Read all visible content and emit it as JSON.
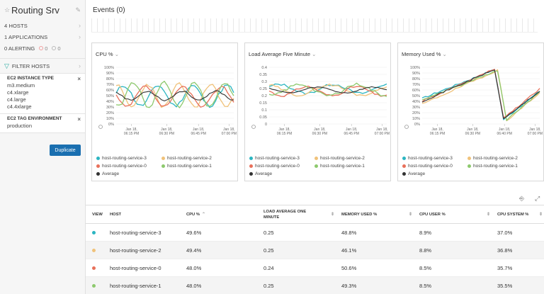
{
  "sidebar": {
    "title": "Routing Srv",
    "summary": [
      {
        "label": "4 HOSTS"
      },
      {
        "label": "1 APPLICATIONS"
      }
    ],
    "alerting": {
      "label": "0 ALERTING",
      "critical": "0",
      "warning": "0"
    },
    "filter_label": "FILTER HOSTS",
    "filters": [
      {
        "title": "EC2 INSTANCE TYPE",
        "values": [
          "m3.medium",
          "c4.xlarge",
          "c4.large",
          "c4.4xlarge"
        ]
      },
      {
        "title": "EC2 TAG ENVIRONMENT",
        "values": [
          "production"
        ]
      }
    ],
    "duplicate_label": "Duplicate"
  },
  "events": {
    "title": "Events (0)"
  },
  "series_colors": {
    "host-routing-service-3": "#2bb5c1",
    "host-routing-service-2": "#f0c27a",
    "host-routing-service-0": "#e8705a",
    "host-routing-service-1": "#8dc96d",
    "Average": "#333333"
  },
  "charts": [
    {
      "title": "CPU %",
      "y_ticks": [
        "100%",
        "90%",
        "80%",
        "70%",
        "60%",
        "50%",
        "40%",
        "30%",
        "20%",
        "10%",
        "0%"
      ],
      "x_ticks": [
        [
          "Jan 18,",
          "06:15 PM"
        ],
        [
          "Jan 18,",
          "06:30 PM"
        ],
        [
          "Jan 18,",
          "06:45 PM"
        ],
        [
          "Jan 18,",
          "07:00 PM"
        ]
      ],
      "legend": [
        "host-routing-service-3",
        "host-routing-service-2",
        "host-routing-service-0",
        "host-routing-service-1",
        "Average"
      ]
    },
    {
      "title": "Load Average Five Minute",
      "y_ticks": [
        "0.4",
        "0.35",
        "0.3",
        "0.25",
        "0.2",
        "0.15",
        "0.1",
        "0.05",
        "0"
      ],
      "x_ticks": [
        [
          "Jan 18,",
          "06:15 PM"
        ],
        [
          "Jan 18,",
          "06:30 PM"
        ],
        [
          "Jan 18,",
          "06:45 PM"
        ],
        [
          "Jan 18,",
          "07:00 PM"
        ]
      ],
      "legend": [
        "host-routing-service-3",
        "host-routing-service-2",
        "host-routing-service-0",
        "host-routing-service-1",
        "Average"
      ]
    },
    {
      "title": "Memory Used %",
      "y_ticks": [
        "100%",
        "90%",
        "80%",
        "70%",
        "60%",
        "50%",
        "40%",
        "30%",
        "20%",
        "10%",
        "0%"
      ],
      "x_ticks": [
        [
          "Jan 18,",
          "06:15 PM"
        ],
        [
          "Jan 18,",
          "06:30 PM"
        ],
        [
          "Jan 18,",
          "06:40 PM"
        ],
        [
          "Jan 18,",
          "07:00 PM"
        ]
      ],
      "legend": [
        "host-routing-service-3",
        "host-routing-service-2",
        "host-routing-service-0",
        "host-routing-service-1",
        "Average"
      ]
    }
  ],
  "table": {
    "headers": {
      "view": "VIEW",
      "host": "HOST",
      "cpu": "CPU %",
      "load": "LOAD AVERAGE ONE MINUTE",
      "mem": "MEMORY USED %",
      "cpu_user": "CPU USER %",
      "cpu_system": "CPU SYSTEM %"
    },
    "rows": [
      {
        "host": "host-routing-service-3",
        "cpu": "49.6%",
        "load": "0.25",
        "mem": "48.8%",
        "cpu_user": "8.9%",
        "cpu_system": "37.0%"
      },
      {
        "host": "host-routing-service-2",
        "cpu": "49.4%",
        "load": "0.25",
        "mem": "46.1%",
        "cpu_user": "8.8%",
        "cpu_system": "36.8%"
      },
      {
        "host": "host-routing-service-0",
        "cpu": "48.0%",
        "load": "0.24",
        "mem": "50.6%",
        "cpu_user": "8.5%",
        "cpu_system": "35.7%"
      },
      {
        "host": "host-routing-service-1",
        "cpu": "48.0%",
        "load": "0.25",
        "mem": "49.3%",
        "cpu_user": "8.5%",
        "cpu_system": "35.5%"
      }
    ]
  }
}
